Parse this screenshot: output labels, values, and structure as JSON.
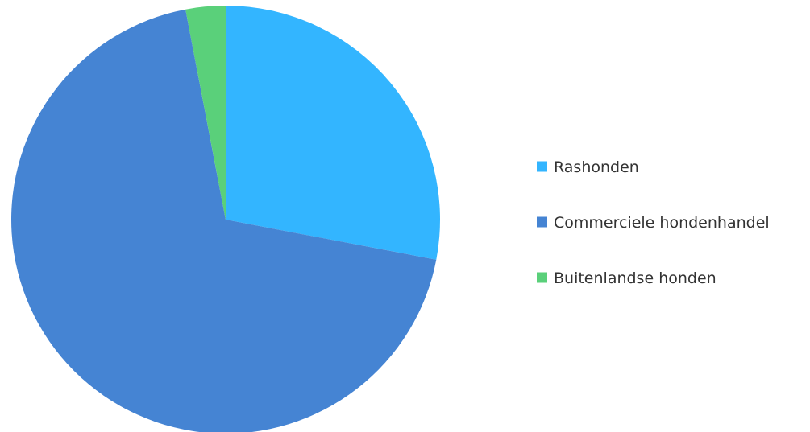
{
  "chart_data": {
    "type": "pie",
    "title": "",
    "legend_position": "right",
    "slices": [
      {
        "label": "Rashonden",
        "value": 28,
        "color": "#33b5ff"
      },
      {
        "label": "Commerciele hondenhandel",
        "value": 69,
        "color": "#4584d3"
      },
      {
        "label": "Buitenlandse honden",
        "value": 3,
        "color": "#5ad07a"
      }
    ]
  }
}
